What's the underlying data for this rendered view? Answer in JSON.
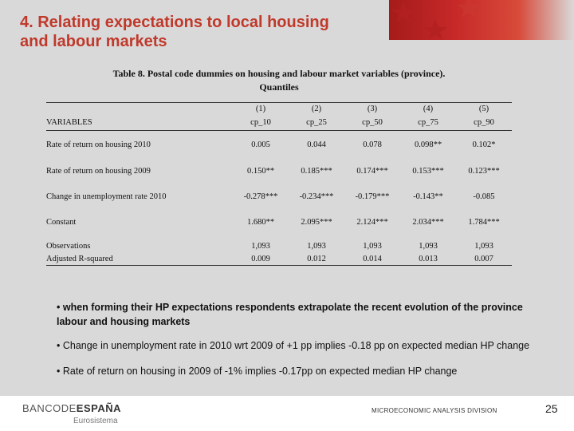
{
  "slide": {
    "title_line1": "4. Relating expectations to local housing",
    "title_line2": "and labour markets",
    "accent_color": "#c0392b"
  },
  "table": {
    "title_line1": "Table 8. Postal code dummies on housing and labour market variables (province).",
    "title_line2": "Quantiles",
    "var_header": "VARIABLES",
    "columns": [
      {
        "num": "(1)",
        "label": "cp_10"
      },
      {
        "num": "(2)",
        "label": "cp_25"
      },
      {
        "num": "(3)",
        "label": "cp_50"
      },
      {
        "num": "(4)",
        "label": "cp_75"
      },
      {
        "num": "(5)",
        "label": "cp_90"
      }
    ],
    "rows": [
      {
        "label": "Rate of return on housing 2010",
        "values": [
          "0.005",
          "0.044",
          "0.078",
          "0.098**",
          "0.102*"
        ]
      },
      {
        "label": "Rate of return on housing 2009",
        "values": [
          "0.150**",
          "0.185***",
          "0.174***",
          "0.153***",
          "0.123***"
        ]
      },
      {
        "label": "Change in unemployment rate 2010",
        "values": [
          "-0.278***",
          "-0.234***",
          "-0.179***",
          "-0.143**",
          "-0.085"
        ]
      },
      {
        "label": "Constant",
        "values": [
          "1.680**",
          "2.095***",
          "2.124***",
          "2.034***",
          "1.784***"
        ]
      }
    ],
    "observations": {
      "label": "Observations",
      "values": [
        "1,093",
        "1,093",
        "1,093",
        "1,093",
        "1,093"
      ]
    },
    "r2": {
      "label": "Adjusted R-squared",
      "values": [
        "0.009",
        "0.012",
        "0.014",
        "0.013",
        "0.007"
      ]
    }
  },
  "bullets": [
    "• when forming their HP expectations respondents extrapolate the recent evolution of the province labour and housing markets",
    "• Change in unemployment rate in 2010 wrt 2009 of +1 pp implies -0.18 pp on expected median HP change",
    "• Rate of return on housing in 2009 of -1% implies -0.17pp on expected median HP change"
  ],
  "footer": {
    "logo_light": "BANCODE",
    "logo_bold": "ESPAÑA",
    "eurosystem": "Eurosistema",
    "division": "MICROECONOMIC ANALYSIS DIVISION",
    "page_number": "25"
  }
}
